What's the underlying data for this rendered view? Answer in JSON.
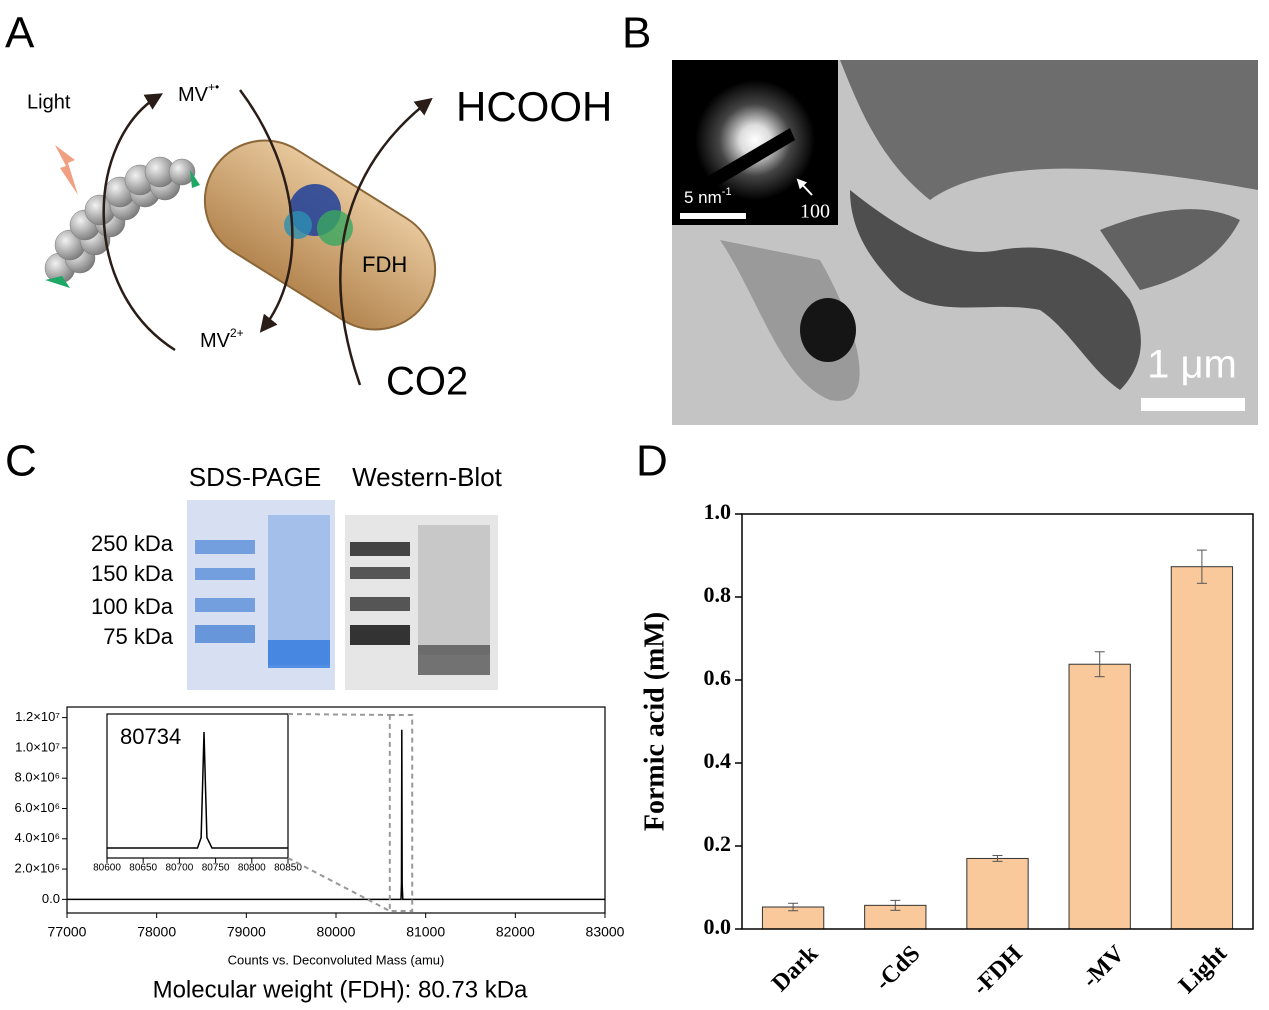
{
  "panels": {
    "labels": [
      "A",
      "B",
      "C",
      "D"
    ]
  },
  "diagram": {
    "light": "Light",
    "mv_reduced": {
      "text": "MV",
      "sup": "+•"
    },
    "mv_oxidized": {
      "text": "MV",
      "sup": "2+"
    },
    "product": "HCOOH",
    "substrate": "CO2",
    "enzyme": "FDH"
  },
  "micrograph": {
    "saed_scale": {
      "text": "5 nm",
      "sup": "-1"
    },
    "saed_ring": "100",
    "scale_bar": "1 μm"
  },
  "gel": {
    "titles": [
      "SDS-PAGE",
      "Western-Blot"
    ],
    "markers": [
      "250 kDa",
      "150 kDa",
      "100 kDa",
      "75 kDa"
    ]
  },
  "chart_data": [
    {
      "type": "line",
      "x_label": "Counts vs. Deconvoluted Mass (amu)",
      "caption": "Molecular weight (FDH): 80.73 kDa",
      "x": [
        77000,
        80725,
        80730,
        80732,
        80734,
        80736,
        80738,
        80745,
        83000
      ],
      "series": [
        {
          "color": "#000000",
          "values": [
            0,
            0,
            1000000,
            6000000,
            11200000,
            6000000,
            1000000,
            0,
            0
          ]
        }
      ],
      "xlim": [
        77000,
        83000
      ],
      "xticks": [
        77000,
        78000,
        79000,
        80000,
        81000,
        82000,
        83000
      ],
      "ylim": [
        -900000,
        12700000
      ],
      "yticks": [
        {
          "value": 0,
          "label": "0.0"
        },
        {
          "value": 2000000,
          "label": "2.0×10⁶"
        },
        {
          "value": 4000000,
          "label": "4.0×10⁶"
        },
        {
          "value": 6000000,
          "label": "6.0×10⁶"
        },
        {
          "value": 8000000,
          "label": "8.0×10⁶"
        },
        {
          "value": 10000000,
          "label": "1.0×10⁷"
        },
        {
          "value": 12000000,
          "label": "1.2×10⁷"
        }
      ]
    },
    {
      "type": "line",
      "annotation": "80734",
      "x": [
        80600,
        80725,
        80730,
        80732,
        80734,
        80736,
        80738,
        80745,
        80850
      ],
      "series": [
        {
          "color": "#000000",
          "values": [
            0,
            0,
            1000000,
            6000000,
            11200000,
            6000000,
            1000000,
            0,
            0
          ]
        }
      ],
      "xlim": [
        80600,
        80850
      ],
      "xticks": [
        80600,
        80650,
        80700,
        80750,
        80800,
        80850
      ],
      "ylim": [
        -970000,
        12940000
      ]
    },
    {
      "type": "bar",
      "y_label": "Formic acid (mM)",
      "categories": [
        "Dark",
        "-CdS",
        "-FDH",
        "-MV",
        "Light"
      ],
      "values": [
        0.053,
        0.057,
        0.17,
        0.638,
        0.873
      ],
      "errors": [
        0.009,
        0.012,
        0.007,
        0.03,
        0.04
      ],
      "color": "#f9c89b",
      "ylim": [
        0,
        1
      ],
      "yticks": [
        {
          "value": 0,
          "label": "0.0"
        },
        0.2,
        0.4,
        0.6,
        0.8,
        {
          "value": 1,
          "label": "1.0"
        }
      ]
    }
  ]
}
